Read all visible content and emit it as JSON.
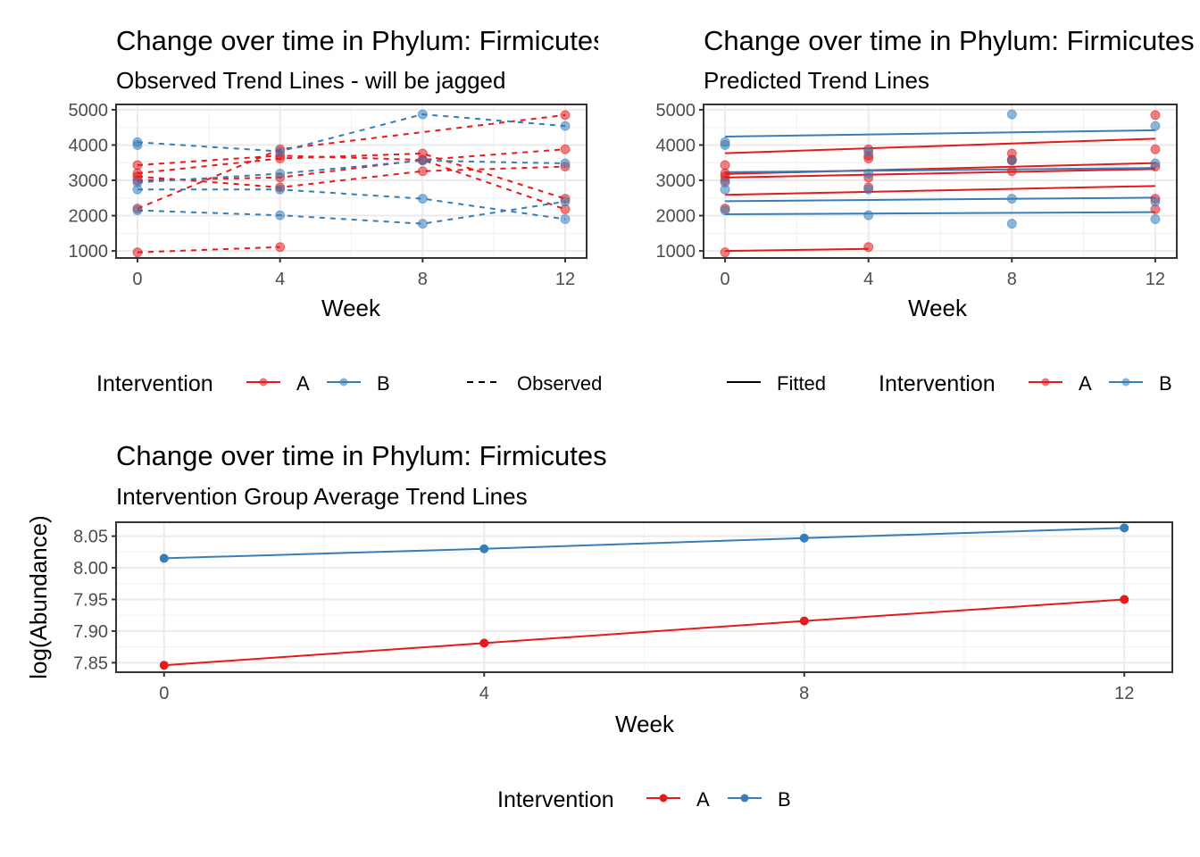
{
  "colors": {
    "A": "#E41A1C",
    "B": "#377EB8"
  },
  "chart_data": [
    {
      "type": "line",
      "title": "Change over time in Phylum: Firmicutes",
      "subtitle": "Observed Trend Lines - will be jagged",
      "xlabel": "Week",
      "ylabel": "",
      "x_ticks": [
        0,
        4,
        8,
        12
      ],
      "y_ticks": [
        1000,
        2000,
        3000,
        4000,
        5000
      ],
      "ylim": [
        800,
        5150
      ],
      "xlim": [
        -0.6,
        12.6
      ],
      "grid": true,
      "line_style": "dashed",
      "legend": {
        "title": "Intervention",
        "entries": [
          "A",
          "B"
        ],
        "linetype_label": "Observed",
        "placement": "bottom"
      },
      "subjects": [
        {
          "group": "A",
          "x": [
            0,
            4,
            12
          ],
          "y": [
            2200,
            3880,
            4850
          ]
        },
        {
          "group": "A",
          "x": [
            0,
            4,
            8,
            12
          ],
          "y": [
            3430,
            3700,
            3580,
            3880
          ]
        },
        {
          "group": "A",
          "x": [
            0,
            4,
            8,
            12
          ],
          "y": [
            3200,
            3620,
            3760,
            2480
          ]
        },
        {
          "group": "A",
          "x": [
            0,
            4,
            8,
            12
          ],
          "y": [
            3110,
            2800,
            3260,
            3390
          ]
        },
        {
          "group": "A",
          "x": [
            0,
            4,
            8,
            12
          ],
          "y": [
            3000,
            3080,
            3580,
            2180
          ]
        },
        {
          "group": "A",
          "x": [
            0,
            4
          ],
          "y": [
            960,
            1110
          ]
        },
        {
          "group": "B",
          "x": [
            0,
            4,
            8,
            12
          ],
          "y": [
            4080,
            3820,
            4870,
            4540
          ]
        },
        {
          "group": "B",
          "x": [
            0,
            4,
            8,
            12
          ],
          "y": [
            2940,
            3190,
            3560,
            3480
          ]
        },
        {
          "group": "B",
          "x": [
            0,
            4,
            8,
            12
          ],
          "y": [
            2740,
            2740,
            2480,
            1900
          ]
        },
        {
          "group": "B",
          "x": [
            0,
            4,
            8,
            12
          ],
          "y": [
            2150,
            2010,
            1770,
            2400
          ]
        },
        {
          "group": "B",
          "x": [
            0
          ],
          "y": [
            4000
          ]
        }
      ]
    },
    {
      "type": "line",
      "title": "Change over time in Phylum: Firmicutes",
      "subtitle": "Predicted Trend Lines",
      "xlabel": "Week",
      "ylabel": "",
      "x_ticks": [
        0,
        4,
        8,
        12
      ],
      "y_ticks": [
        1000,
        2000,
        3000,
        4000,
        5000
      ],
      "ylim": [
        800,
        5150
      ],
      "xlim": [
        -0.6,
        12.6
      ],
      "grid": true,
      "line_style": "solid",
      "legend": {
        "title": "Intervention",
        "entries": [
          "A",
          "B"
        ],
        "linetype_label": "Fitted",
        "placement": "bottom"
      },
      "fitted": [
        {
          "group": "A",
          "x": [
            0,
            12
          ],
          "y": [
            3770,
            4180
          ]
        },
        {
          "group": "A",
          "x": [
            0,
            12
          ],
          "y": [
            3180,
            3490
          ]
        },
        {
          "group": "A",
          "x": [
            0,
            12
          ],
          "y": [
            3080,
            3320
          ]
        },
        {
          "group": "A",
          "x": [
            0,
            12
          ],
          "y": [
            2590,
            2840
          ]
        },
        {
          "group": "A",
          "x": [
            0,
            4
          ],
          "y": [
            1000,
            1060
          ]
        },
        {
          "group": "B",
          "x": [
            0,
            12
          ],
          "y": [
            4240,
            4420
          ]
        },
        {
          "group": "B",
          "x": [
            0,
            12
          ],
          "y": [
            3230,
            3350
          ]
        },
        {
          "group": "B",
          "x": [
            0,
            12
          ],
          "y": [
            2410,
            2510
          ]
        },
        {
          "group": "B",
          "x": [
            0,
            12
          ],
          "y": [
            2040,
            2100
          ]
        }
      ]
    },
    {
      "type": "line",
      "title": "Change over time in Phylum: Firmicutes",
      "subtitle": "Intervention Group Average Trend Lines",
      "xlabel": "Week",
      "ylabel": "log(Abundance)",
      "x_ticks": [
        0,
        4,
        8,
        12
      ],
      "y_ticks": [
        7.85,
        7.9,
        7.95,
        8.0,
        8.05
      ],
      "y_tick_labels": [
        "7.85",
        "7.90",
        "7.95",
        "8.00",
        "8.05"
      ],
      "ylim": [
        7.835,
        8.072
      ],
      "xlim": [
        -0.6,
        12.6
      ],
      "grid": true,
      "legend": {
        "title": "Intervention",
        "entries": [
          "A",
          "B"
        ],
        "placement": "bottom"
      },
      "series": [
        {
          "name": "A",
          "x": [
            0,
            4,
            8,
            12
          ],
          "y": [
            7.846,
            7.881,
            7.916,
            7.95
          ]
        },
        {
          "name": "B",
          "x": [
            0,
            4,
            8,
            12
          ],
          "y": [
            8.015,
            8.03,
            8.047,
            8.063
          ]
        }
      ]
    }
  ]
}
